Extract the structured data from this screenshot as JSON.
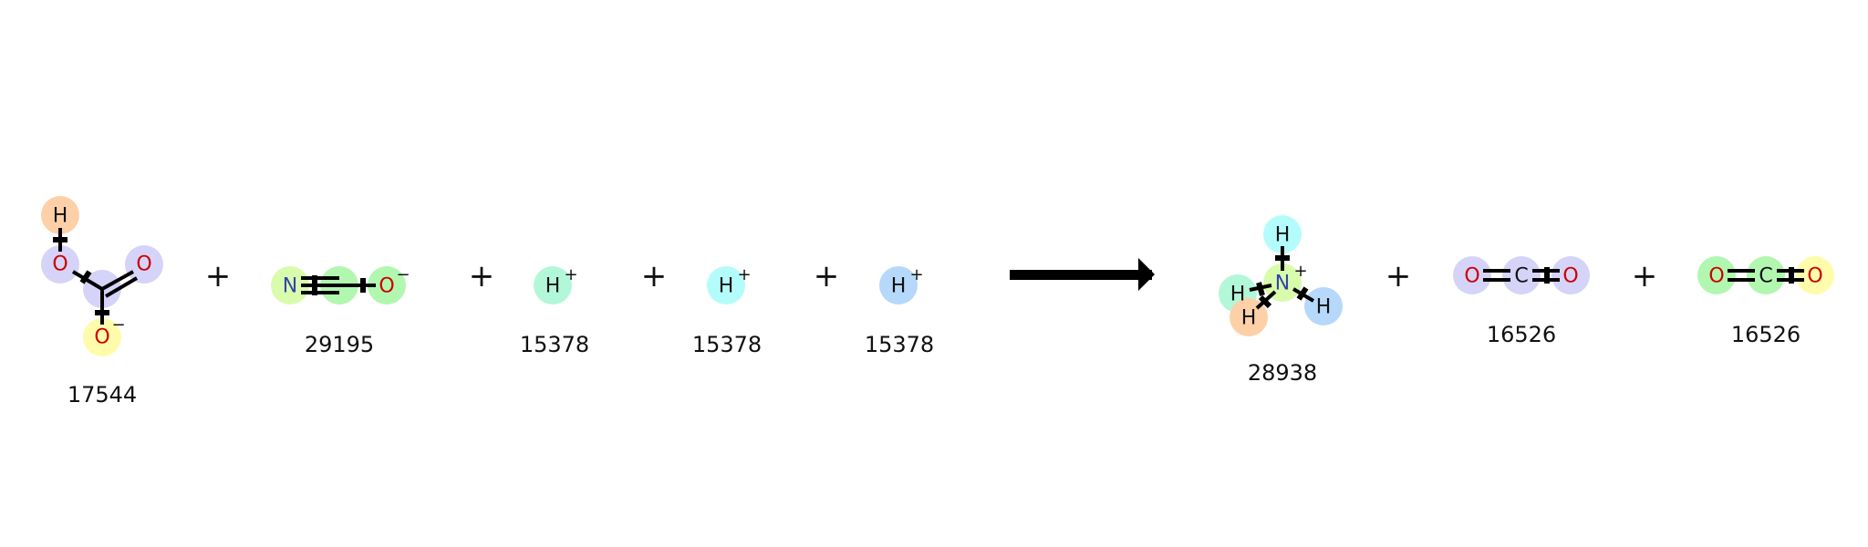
{
  "colors": {
    "orange": "#fdd0a8",
    "lavender": "#d6d3f8",
    "yellow": "#fefcaa",
    "lightgreen": "#d8fcac",
    "green": "#b2f7b0",
    "mint": "#b2f8d8",
    "cyan": "#b4fcfc",
    "blue": "#b5d8fb",
    "O": "#cc0000",
    "N": "#3344aa",
    "C": "#111111",
    "H": "#111111"
  },
  "reactants": [
    {
      "id": "17544",
      "atoms": [
        {
          "el": "H",
          "charge": "",
          "color": "orange"
        },
        {
          "el": "O",
          "charge": "",
          "color": "lavender"
        },
        {
          "el": "O",
          "charge": "",
          "color": "lavender"
        },
        {
          "el": "O",
          "charge": "−",
          "color": "yellow"
        }
      ]
    },
    {
      "id": "29195",
      "atoms": [
        {
          "el": "N",
          "charge": "",
          "color": "lightgreen"
        },
        {
          "el": "O",
          "charge": "−",
          "color": "green"
        }
      ]
    },
    {
      "id": "15378",
      "atoms": [
        {
          "el": "H",
          "charge": "+",
          "color": "mint"
        }
      ]
    },
    {
      "id": "15378",
      "atoms": [
        {
          "el": "H",
          "charge": "+",
          "color": "cyan"
        }
      ]
    },
    {
      "id": "15378",
      "atoms": [
        {
          "el": "H",
          "charge": "+",
          "color": "blue"
        }
      ]
    }
  ],
  "products": [
    {
      "id": "28938",
      "atoms": [
        {
          "el": "H",
          "charge": "",
          "color": "cyan"
        },
        {
          "el": "N",
          "charge": "+",
          "color": "lightgreen"
        },
        {
          "el": "H",
          "charge": "",
          "color": "mint"
        },
        {
          "el": "H",
          "charge": "",
          "color": "orange"
        },
        {
          "el": "H",
          "charge": "",
          "color": "blue"
        }
      ]
    },
    {
      "id": "16526",
      "atoms": [
        {
          "el": "O",
          "charge": "",
          "color": "lavender"
        },
        {
          "el": "C",
          "charge": "",
          "color": "lavender"
        },
        {
          "el": "O",
          "charge": "",
          "color": "lavender"
        }
      ]
    },
    {
      "id": "16526",
      "atoms": [
        {
          "el": "O",
          "charge": "",
          "color": "green"
        },
        {
          "el": "C",
          "charge": "",
          "color": "green"
        },
        {
          "el": "O",
          "charge": "",
          "color": "yellow"
        }
      ]
    }
  ],
  "operators": {
    "plus": "+"
  }
}
